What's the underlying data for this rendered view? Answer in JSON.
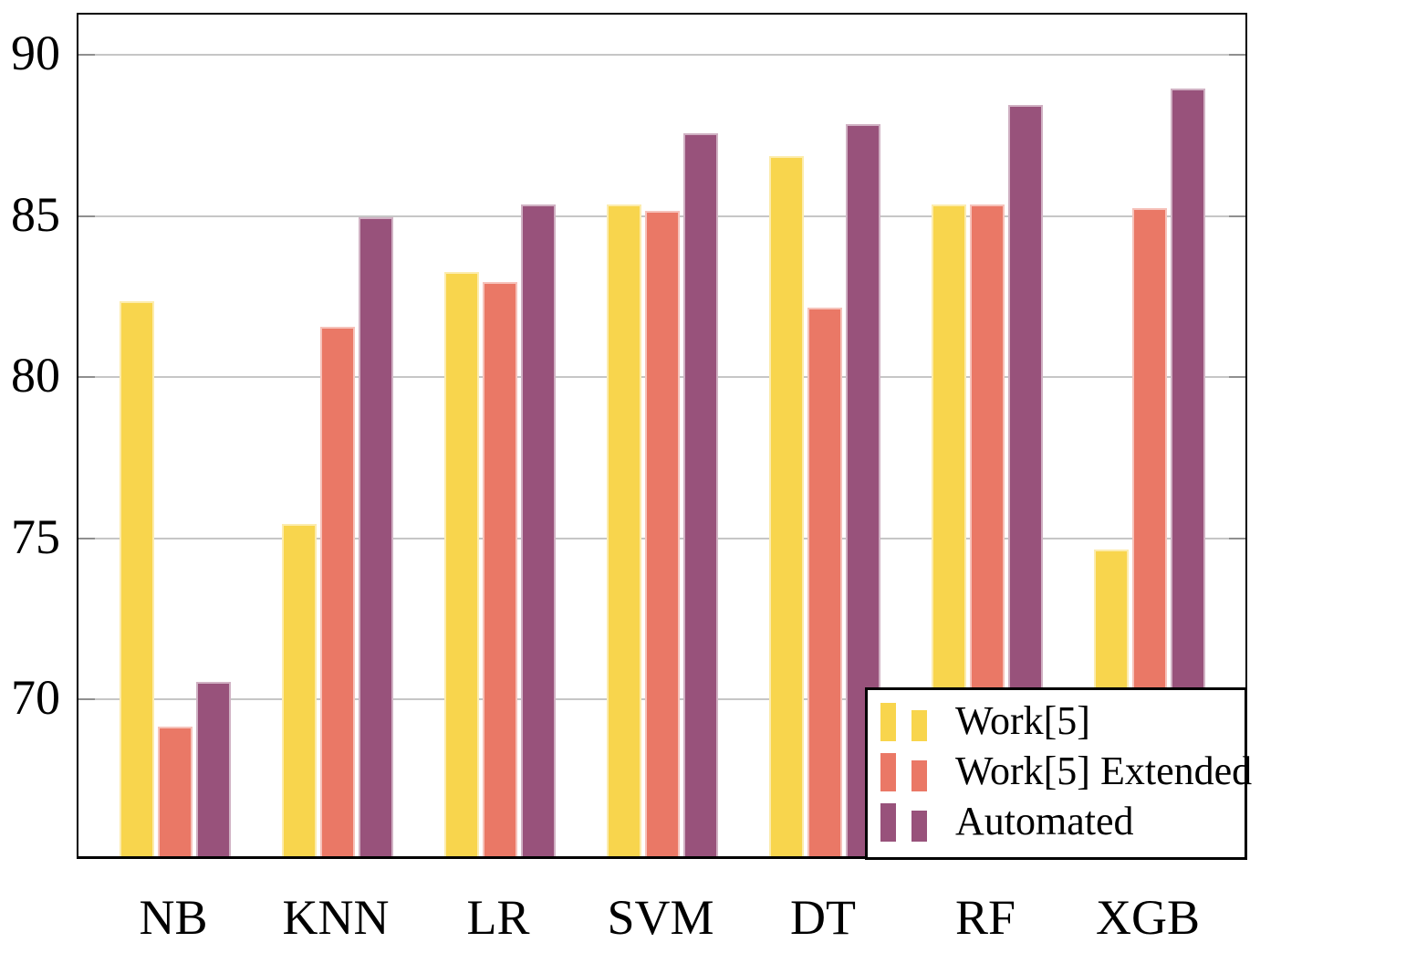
{
  "chart_data": {
    "type": "bar",
    "title": "",
    "xlabel": "",
    "ylabel": "",
    "categories": [
      "NB",
      "KNN",
      "LR",
      "SVM",
      "DT",
      "RF",
      "XGB"
    ],
    "series": [
      {
        "name": "Work[5]",
        "color": "#F8D54D",
        "values": [
          82.3,
          75.4,
          83.2,
          85.3,
          86.8,
          85.3,
          74.6
        ]
      },
      {
        "name": "Work[5] Extended",
        "color": "#EA7866",
        "values": [
          69.1,
          81.5,
          82.9,
          85.1,
          82.1,
          85.3,
          85.2
        ]
      },
      {
        "name": "Automated",
        "color": "#98527B",
        "values": [
          70.5,
          84.9,
          85.3,
          87.5,
          87.8,
          88.4,
          88.9
        ]
      }
    ],
    "ylim": [
      65,
      91.25
    ],
    "yticks": [
      70,
      75,
      80,
      85,
      90
    ],
    "grid": "horizontal",
    "legend_position": "lower right",
    "colors": {
      "background": "#ffffff",
      "axis_frame": "#000000",
      "gridline": "#c6c6c6",
      "tick_mark": "#8f8f8f",
      "text": "#000000"
    }
  }
}
